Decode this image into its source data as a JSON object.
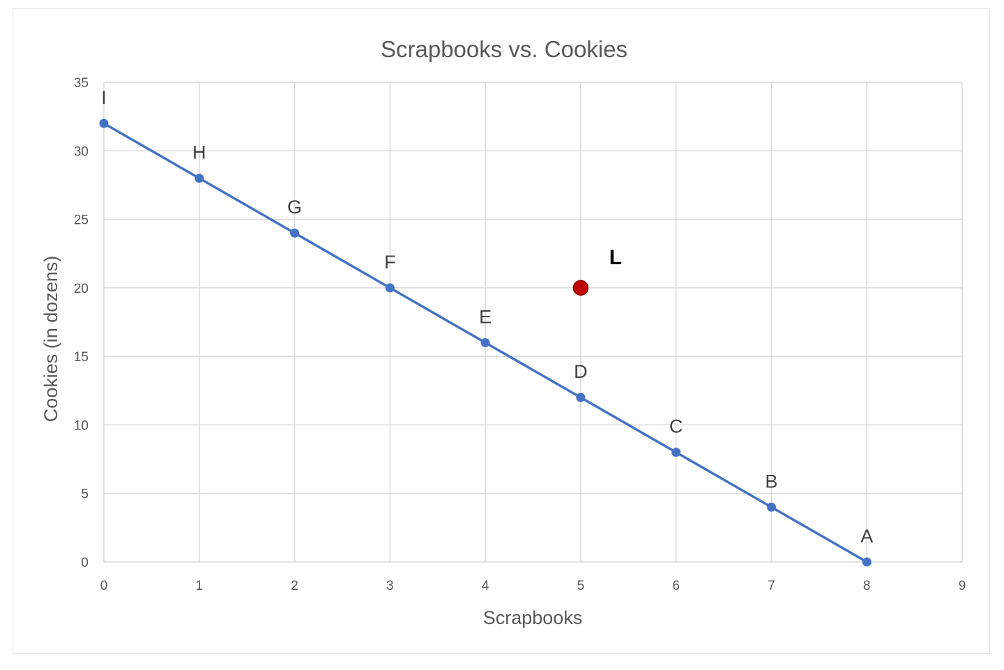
{
  "chart_data": {
    "type": "line",
    "title": "Scrapbooks vs. Cookies",
    "xlabel": "Scrapbooks",
    "ylabel": "Cookies (in dozens)",
    "xlim": [
      0,
      9
    ],
    "ylim": [
      0,
      35
    ],
    "x_ticks": [
      0,
      1,
      2,
      3,
      4,
      5,
      6,
      7,
      8,
      9
    ],
    "y_ticks": [
      0,
      5,
      10,
      15,
      20,
      25,
      30,
      35
    ],
    "grid": true,
    "series": [
      {
        "color": "#4472c4",
        "points": [
          {
            "label": "I",
            "x": 0,
            "y": 32
          },
          {
            "label": "H",
            "x": 1,
            "y": 28
          },
          {
            "label": "G",
            "x": 2,
            "y": 24
          },
          {
            "label": "F",
            "x": 3,
            "y": 20
          },
          {
            "label": "E",
            "x": 4,
            "y": 16
          },
          {
            "label": "D",
            "x": 5,
            "y": 12
          },
          {
            "label": "C",
            "x": 6,
            "y": 8
          },
          {
            "label": "B",
            "x": 7,
            "y": 4
          },
          {
            "label": "A",
            "x": 8,
            "y": 0
          }
        ]
      }
    ],
    "extra_points": [
      {
        "label": "L",
        "x": 5,
        "y": 20,
        "color": "#c00000"
      }
    ]
  }
}
